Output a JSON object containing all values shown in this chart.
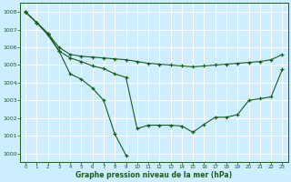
{
  "title": "Graphe pression niveau de la mer (hPa)",
  "bg_color": "#cceeff",
  "grid_color": "#aaddcc",
  "line_color": "#1a5e1a",
  "xlim": [
    -0.5,
    23.5
  ],
  "ylim": [
    999.5,
    1008.5
  ],
  "yticks": [
    1000,
    1001,
    1002,
    1003,
    1004,
    1005,
    1006,
    1007,
    1008
  ],
  "xticks": [
    0,
    1,
    2,
    3,
    4,
    5,
    6,
    7,
    8,
    9,
    10,
    11,
    12,
    13,
    14,
    15,
    16,
    17,
    18,
    19,
    20,
    21,
    22,
    23
  ],
  "series1_x": [
    0,
    1,
    2,
    3,
    4,
    5,
    6,
    7,
    8,
    9
  ],
  "series1_y": [
    1008.0,
    1007.4,
    1006.7,
    1005.8,
    1004.5,
    1004.2,
    1003.7,
    1003.0,
    1001.1,
    999.9
  ],
  "series2_x": [
    0,
    1,
    2,
    3,
    4,
    5,
    6,
    7,
    8,
    9,
    10,
    11,
    12,
    13,
    14,
    15,
    16,
    17,
    18,
    19,
    20,
    21,
    22,
    23
  ],
  "series2_y": [
    1008.0,
    1007.4,
    1006.8,
    1006.0,
    1005.6,
    1005.5,
    1005.45,
    1005.4,
    1005.35,
    1005.3,
    1005.2,
    1005.1,
    1005.05,
    1005.0,
    1004.95,
    1004.9,
    1004.95,
    1005.0,
    1005.05,
    1005.1,
    1005.15,
    1005.2,
    1005.3,
    1005.6
  ],
  "series3_x": [
    0,
    1,
    2,
    3,
    4,
    5,
    6,
    7,
    8,
    9,
    10,
    11,
    12,
    13,
    14,
    15,
    16,
    17,
    18,
    19,
    20,
    21,
    22,
    23
  ],
  "series3_y": [
    1008.0,
    1007.4,
    1006.8,
    1005.8,
    1005.4,
    1005.2,
    1004.95,
    1004.8,
    1004.5,
    1004.3,
    1001.4,
    1001.6,
    1001.6,
    1001.6,
    1001.55,
    1001.2,
    1001.65,
    1002.05,
    1002.05,
    1002.2,
    1003.0,
    1003.1,
    1003.2,
    1004.75
  ]
}
